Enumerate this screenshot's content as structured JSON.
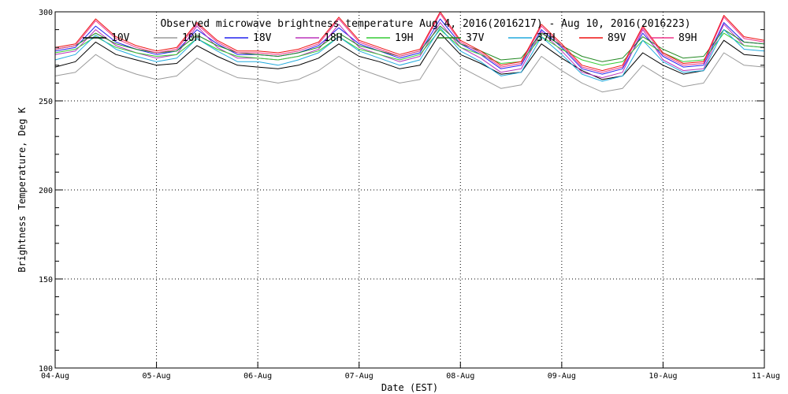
{
  "chart_data": {
    "type": "line",
    "title": "Observed microwave brightness temperature Aug  4, 2016(2016217) - Aug 10, 2016(2016223)",
    "xlabel": "Date (EST)",
    "ylabel": "Brightness Temperature, Deg K",
    "ylim": [
      100,
      300
    ],
    "yticks": [
      100,
      150,
      200,
      250,
      300
    ],
    "xlim": [
      "2016-08-04",
      "2016-08-11"
    ],
    "xticks": [
      "04-Aug",
      "05-Aug",
      "06-Aug",
      "07-Aug",
      "08-Aug",
      "09-Aug",
      "10-Aug",
      "11-Aug"
    ],
    "grid": true,
    "legend": "top",
    "series": [
      {
        "name": "10V",
        "color": "#000000",
        "values": [
          269,
          272,
          283,
          276,
          273,
          270,
          271,
          281,
          275,
          270,
          269,
          268,
          270,
          274,
          282,
          275,
          272,
          268,
          270,
          288,
          276,
          271,
          265,
          266,
          282,
          274,
          267,
          262,
          264,
          277,
          270,
          265,
          267,
          284,
          276,
          275
        ]
      },
      {
        "name": "10H",
        "color": "#9a9a9a",
        "values": [
          264,
          266,
          276,
          269,
          265,
          262,
          264,
          274,
          268,
          263,
          262,
          260,
          262,
          267,
          275,
          268,
          264,
          260,
          262,
          280,
          269,
          263,
          257,
          259,
          275,
          267,
          260,
          255,
          257,
          270,
          263,
          258,
          260,
          277,
          270,
          269
        ]
      },
      {
        "name": "18V",
        "color": "#2222ee",
        "values": [
          278,
          280,
          292,
          283,
          279,
          276,
          278,
          290,
          282,
          276,
          276,
          275,
          277,
          281,
          291,
          282,
          278,
          274,
          277,
          296,
          282,
          276,
          268,
          270,
          290,
          280,
          268,
          265,
          268,
          288,
          275,
          269,
          270,
          294,
          283,
          282
        ]
      },
      {
        "name": "18H",
        "color": "#bb33bb",
        "values": [
          276,
          278,
          290,
          281,
          277,
          274,
          276,
          292,
          280,
          274,
          274,
          273,
          275,
          279,
          293,
          280,
          276,
          272,
          275,
          294,
          280,
          274,
          266,
          268,
          289,
          278,
          266,
          263,
          266,
          290,
          273,
          267,
          268,
          293,
          281,
          280
        ]
      },
      {
        "name": "19H",
        "color": "#33cc33",
        "values": [
          277,
          279,
          286,
          280,
          277,
          275,
          276,
          285,
          279,
          275,
          274,
          273,
          275,
          278,
          286,
          279,
          276,
          273,
          276,
          290,
          280,
          276,
          271,
          272,
          286,
          279,
          273,
          270,
          272,
          284,
          277,
          272,
          273,
          288,
          281,
          280
        ]
      },
      {
        "name": "37V",
        "color": "#228822",
        "values": [
          279,
          281,
          288,
          282,
          279,
          277,
          278,
          287,
          281,
          277,
          276,
          275,
          277,
          280,
          288,
          281,
          278,
          275,
          278,
          292,
          282,
          278,
          273,
          274,
          288,
          281,
          275,
          272,
          274,
          286,
          279,
          274,
          275,
          290,
          283,
          282
        ]
      },
      {
        "name": "37H",
        "color": "#22aadd",
        "values": [
          273,
          276,
          287,
          279,
          275,
          272,
          274,
          285,
          278,
          272,
          272,
          270,
          273,
          277,
          286,
          278,
          274,
          270,
          273,
          291,
          278,
          272,
          264,
          266,
          286,
          276,
          265,
          261,
          264,
          284,
          272,
          266,
          267,
          290,
          279,
          278
        ]
      },
      {
        "name": "89V",
        "color": "#ee1111",
        "values": [
          280,
          282,
          296,
          286,
          281,
          278,
          280,
          294,
          284,
          278,
          278,
          277,
          279,
          283,
          297,
          284,
          280,
          276,
          279,
          300,
          284,
          278,
          270,
          272,
          293,
          282,
          270,
          267,
          270,
          292,
          277,
          271,
          272,
          298,
          286,
          284
        ]
      },
      {
        "name": "89H",
        "color": "#ee3388",
        "values": [
          279,
          281,
          295,
          285,
          280,
          277,
          279,
          293,
          283,
          277,
          277,
          276,
          278,
          282,
          296,
          283,
          279,
          275,
          278,
          299,
          283,
          277,
          269,
          271,
          292,
          281,
          269,
          266,
          269,
          291,
          276,
          270,
          271,
          297,
          285,
          283
        ]
      }
    ]
  }
}
